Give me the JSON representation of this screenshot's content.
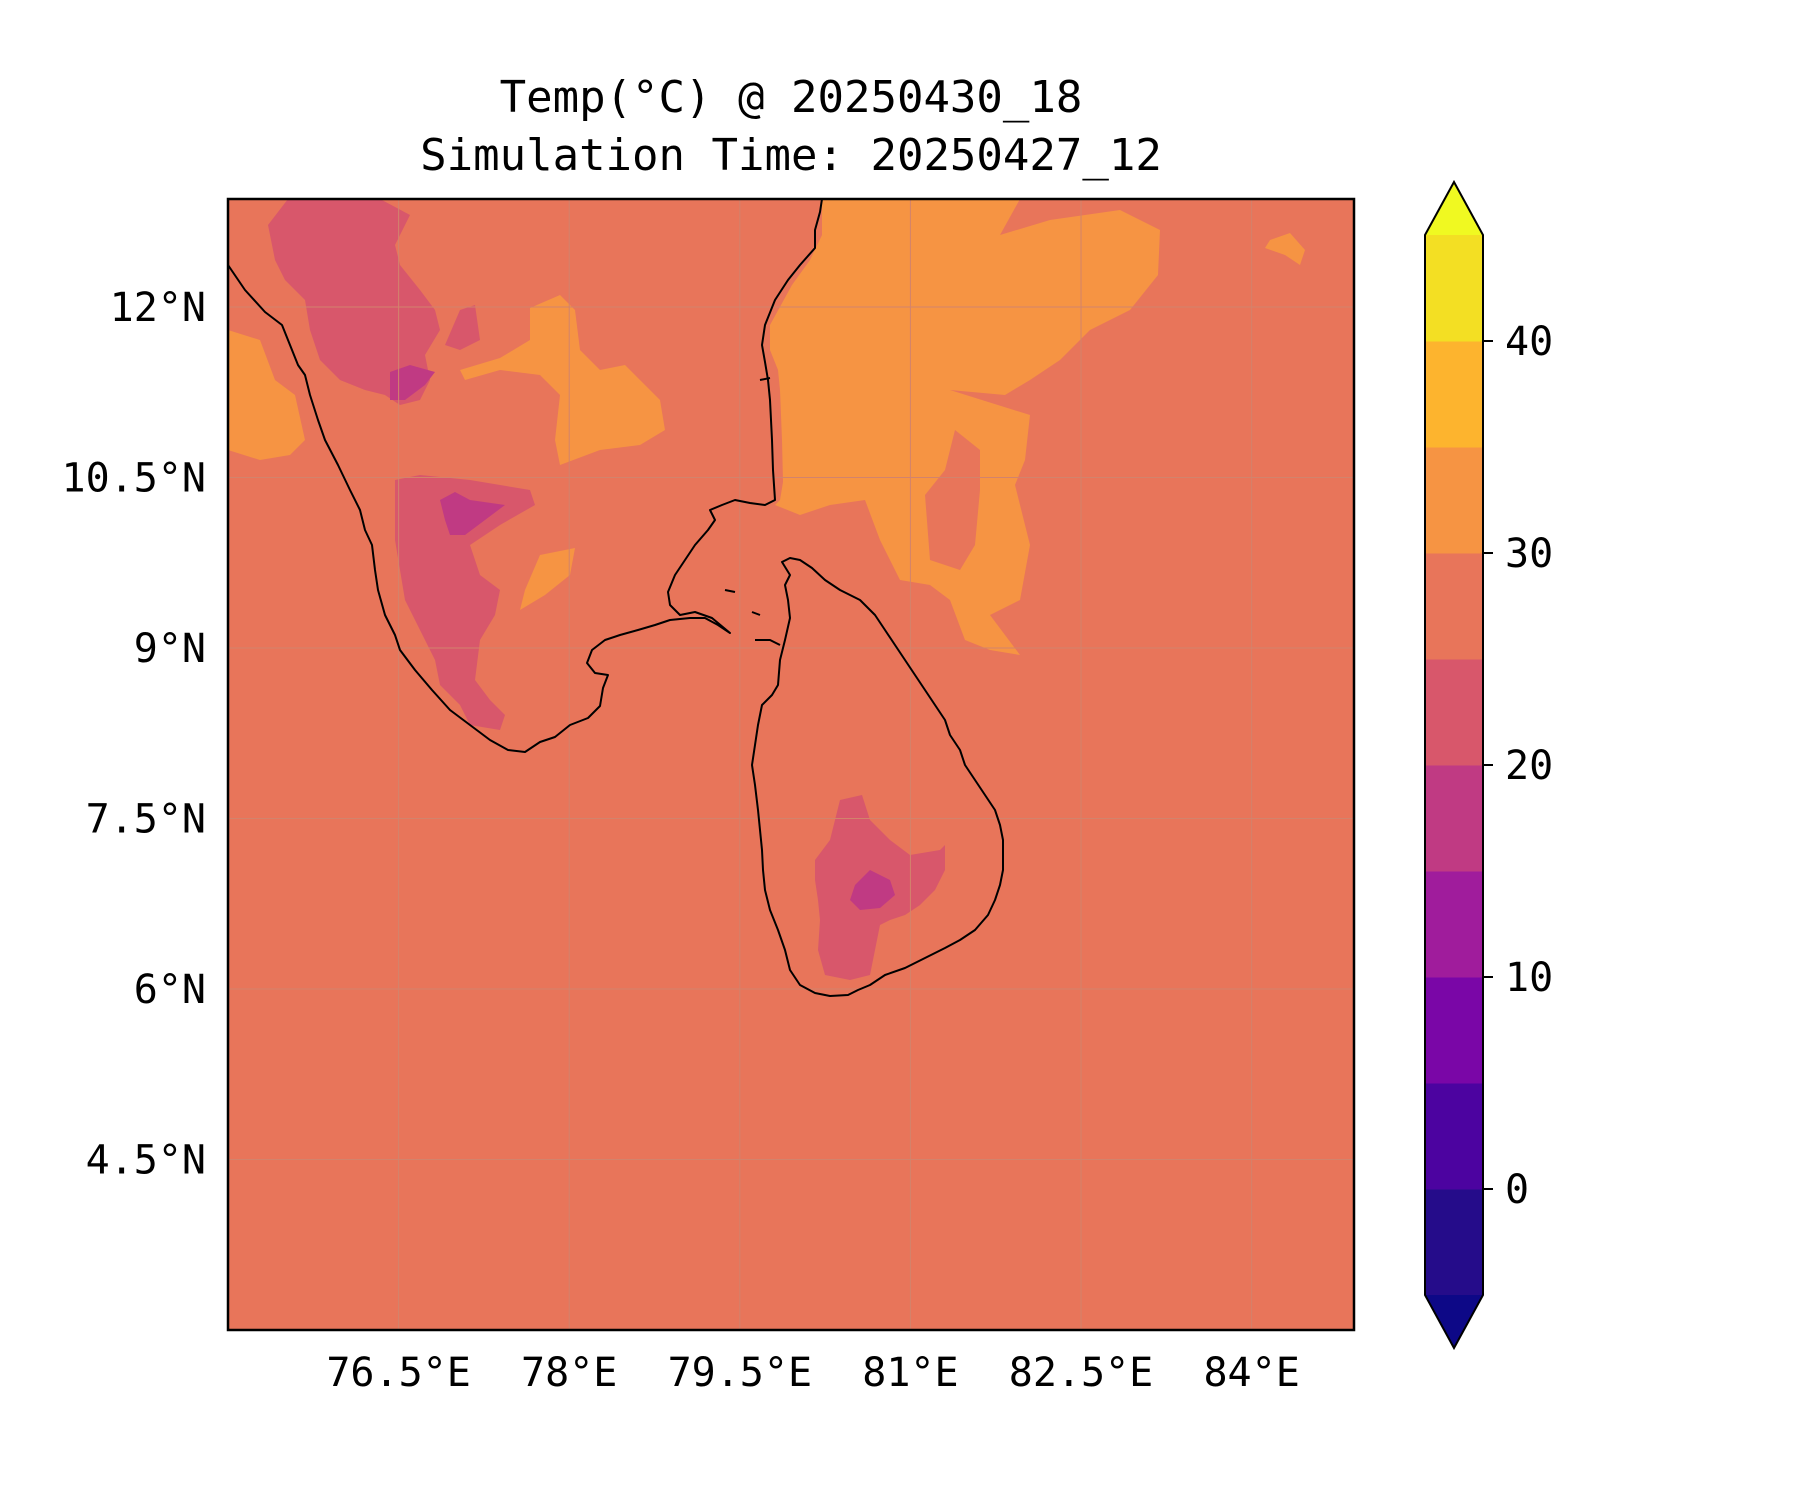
{
  "title": {
    "line1": "Temp(°C) @ 20250430_18",
    "line2": "Simulation Time: 20250427_12"
  },
  "map": {
    "lon_range": [
      75.0,
      84.9
    ],
    "lat_range": [
      3.0,
      12.95
    ],
    "x_ticks": [
      {
        "value": 76.5,
        "label": "76.5°E"
      },
      {
        "value": 78.0,
        "label": "78°E"
      },
      {
        "value": 79.5,
        "label": "79.5°E"
      },
      {
        "value": 81.0,
        "label": "81°E"
      },
      {
        "value": 82.5,
        "label": "82.5°E"
      },
      {
        "value": 84.0,
        "label": "84°E"
      }
    ],
    "y_ticks": [
      {
        "value": 12.0,
        "label": "12°N"
      },
      {
        "value": 10.5,
        "label": "10.5°N"
      },
      {
        "value": 9.0,
        "label": "9°N"
      },
      {
        "value": 7.5,
        "label": "7.5°N"
      },
      {
        "value": 6.0,
        "label": "6°N"
      },
      {
        "value": 4.5,
        "label": "4.5°N"
      }
    ],
    "gridlines": true,
    "background_level_color": "#e8755a"
  },
  "colorbar": {
    "levels": [
      -5,
      0,
      5,
      10,
      15,
      20,
      25,
      30,
      35,
      40,
      45
    ],
    "colors": [
      "#250c8a",
      "#4c03a0",
      "#7a06a7",
      "#a01c9c",
      "#c03a83",
      "#d8576b",
      "#e8755a",
      "#f69443",
      "#fdb42e",
      "#f3df23"
    ],
    "under_color": "#0d0887",
    "over_color": "#f0f921",
    "extend": "both",
    "ticks": [
      {
        "value": 0,
        "label": "0"
      },
      {
        "value": 10,
        "label": "10"
      },
      {
        "value": 20,
        "label": "20"
      },
      {
        "value": 30,
        "label": "30"
      },
      {
        "value": 40,
        "label": "40"
      }
    ]
  }
}
